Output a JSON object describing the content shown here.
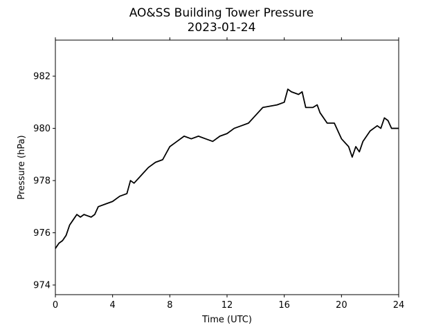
{
  "chart_data": {
    "type": "line",
    "title": "AO&SS Building Tower Pressure",
    "subtitle": "2023-01-24",
    "x_label": "Time (UTC)",
    "y_label": "Pressure (hPa)",
    "x": [
      0,
      0.25,
      0.5,
      0.75,
      1,
      1.25,
      1.5,
      1.75,
      2,
      2.5,
      2.75,
      3,
      3.5,
      4,
      4.5,
      5,
      5.25,
      5.5,
      6,
      6.5,
      7,
      7.5,
      8,
      8.5,
      9,
      9.5,
      10,
      10.5,
      11,
      11.5,
      12,
      12.5,
      13,
      13.5,
      14,
      14.5,
      15,
      15.5,
      16,
      16.25,
      16.5,
      17,
      17.25,
      17.5,
      18,
      18.3,
      18.5,
      19,
      19.5,
      20,
      20.5,
      20.75,
      21,
      21.25,
      21.5,
      22,
      22.5,
      22.75,
      23,
      23.25,
      23.5,
      24
    ],
    "series": [
      {
        "name": "Pressure",
        "color": "#000000",
        "values": [
          975.4,
          975.6,
          975.7,
          975.9,
          976.3,
          976.5,
          976.7,
          976.6,
          976.7,
          976.6,
          976.7,
          977.0,
          977.1,
          977.2,
          977.4,
          977.5,
          978.0,
          977.9,
          978.2,
          978.5,
          978.7,
          978.8,
          979.3,
          979.5,
          979.7,
          979.6,
          979.7,
          979.6,
          979.5,
          979.7,
          979.8,
          980.0,
          980.1,
          980.2,
          980.5,
          980.8,
          980.85,
          980.9,
          981.0,
          981.5,
          981.4,
          981.3,
          981.4,
          980.8,
          980.8,
          980.9,
          980.6,
          980.2,
          980.2,
          979.6,
          979.3,
          978.9,
          979.3,
          979.1,
          979.5,
          979.9,
          980.1,
          980.0,
          980.4,
          980.3,
          980.0,
          980.0
        ]
      }
    ],
    "xlim": [
      0,
      24
    ],
    "xticks": [
      0,
      4,
      8,
      12,
      16,
      20,
      24
    ],
    "ylim": [
      973.63,
      983.38
    ],
    "yticks": [
      974,
      976,
      978,
      980,
      982
    ]
  }
}
